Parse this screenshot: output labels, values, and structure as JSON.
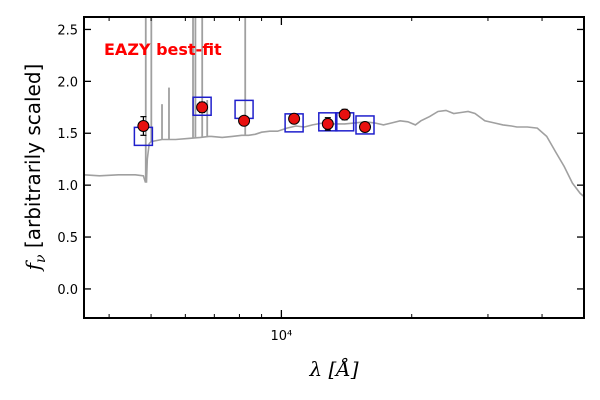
{
  "chart_data": {
    "type": "scatter",
    "title": "",
    "annotation": "EAZY best-fit",
    "annotation_color": "#ff0000",
    "xlabel": "λ [Å]",
    "ylabel": "f_ν [arbitrarily scaled]",
    "x_scale": "log",
    "xlim": [
      3500,
      50000
    ],
    "ylim": [
      -0.28,
      2.62
    ],
    "grid": false,
    "x_ticks": [
      {
        "value": 10000,
        "label": "10⁴"
      }
    ],
    "x_minor_ticks": [
      4000,
      5000,
      6000,
      7000,
      8000,
      9000,
      20000,
      30000,
      40000
    ],
    "y_ticks": [
      {
        "value": 0.0,
        "label": "0.0"
      },
      {
        "value": 0.5,
        "label": "0.5"
      },
      {
        "value": 1.0,
        "label": "1.0"
      },
      {
        "value": 1.5,
        "label": "1.5"
      },
      {
        "value": 2.0,
        "label": "2.0"
      },
      {
        "value": 2.5,
        "label": "2.5"
      }
    ],
    "colors": {
      "template": "#a0a0a0",
      "model_photometry": "#1f1fcc",
      "observed": "#e8100f"
    },
    "template_spectrum": {
      "x": [
        3500,
        3800,
        4200,
        4600,
        4800,
        4850,
        4880,
        4900,
        4950,
        5000,
        5300,
        5700,
        6100,
        6500,
        6800,
        6900,
        7300,
        7700,
        8100,
        8400,
        8700,
        9000,
        9400,
        9800,
        10300,
        10800,
        11300,
        11800,
        12500,
        13200,
        14000,
        14800,
        15600,
        16400,
        17200,
        18000,
        18800,
        19600,
        20400,
        21000,
        22000,
        23000,
        24000,
        25000,
        26000,
        27000,
        28000,
        29500,
        31000,
        32500,
        34000,
        35000,
        37000,
        39000,
        41000,
        43000,
        45000,
        47000,
        49000,
        50000
      ],
      "y": [
        1.1,
        1.09,
        1.1,
        1.1,
        1.09,
        1.03,
        1.03,
        1.25,
        1.4,
        1.42,
        1.44,
        1.44,
        1.45,
        1.46,
        1.47,
        1.47,
        1.46,
        1.47,
        1.48,
        1.48,
        1.49,
        1.51,
        1.52,
        1.52,
        1.55,
        1.57,
        1.56,
        1.58,
        1.6,
        1.59,
        1.59,
        1.6,
        1.61,
        1.6,
        1.58,
        1.6,
        1.62,
        1.61,
        1.58,
        1.62,
        1.66,
        1.71,
        1.72,
        1.69,
        1.7,
        1.71,
        1.69,
        1.62,
        1.6,
        1.58,
        1.57,
        1.56,
        1.56,
        1.55,
        1.47,
        1.32,
        1.18,
        1.02,
        0.92,
        0.89
      ]
    },
    "emission_lines": [
      {
        "x": 4861,
        "y": 2.62
      },
      {
        "x": 5007,
        "y": 2.62
      },
      {
        "x": 5300,
        "y": 1.78
      },
      {
        "x": 5500,
        "y": 1.94
      },
      {
        "x": 6250,
        "y": 2.62
      },
      {
        "x": 6330,
        "y": 2.62
      },
      {
        "x": 6563,
        "y": 2.62
      },
      {
        "x": 6740,
        "y": 1.82
      },
      {
        "x": 8250,
        "y": 2.62
      }
    ],
    "model_photometry": {
      "name": "",
      "x": [
        4800,
        6560,
        8200,
        10700,
        12800,
        14000,
        15600
      ],
      "y": [
        1.47,
        1.76,
        1.73,
        1.6,
        1.61,
        1.61,
        1.58
      ]
    },
    "observed_photometry": {
      "name": "",
      "x": [
        4800,
        6560,
        8200,
        10700,
        12800,
        14000,
        15600
      ],
      "y": [
        1.57,
        1.75,
        1.62,
        1.64,
        1.59,
        1.68,
        1.56
      ],
      "yerr": [
        0.09,
        0.05,
        0.03,
        0.04,
        0.06,
        0.05,
        0.03
      ]
    }
  }
}
